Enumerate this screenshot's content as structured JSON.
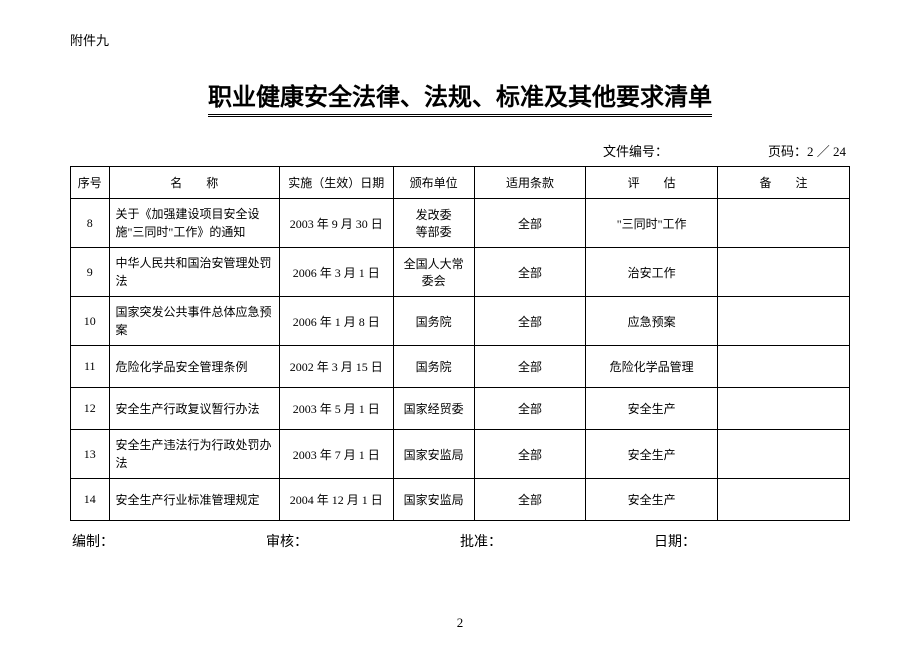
{
  "attachment_label": "附件九",
  "main_title": "职业健康安全法律、法规、标准及其他要求清单",
  "meta": {
    "doc_no_label": "文件编号：",
    "page_label": "页码：2 ／ 24"
  },
  "table": {
    "headers": {
      "seq": "序号",
      "name": "名　　称",
      "date": "实施（生效）日期",
      "unit": "颁布单位",
      "clause": "适用条款",
      "eval": "评　　估",
      "remark": "备　　注"
    },
    "rows": [
      {
        "seq": "8",
        "name": "关于《加强建设项目安全设施\"三同时\"工作》的通知",
        "date": "2003 年 9 月 30 日",
        "unit": "发改委\n等部委",
        "clause": "全部",
        "eval": "\"三同时\"工作",
        "remark": ""
      },
      {
        "seq": "9",
        "name": "中华人民共和国治安管理处罚法",
        "date": "2006 年 3 月 1 日",
        "unit": "全国人大常\n委会",
        "clause": "全部",
        "eval": "治安工作",
        "remark": ""
      },
      {
        "seq": "10",
        "name": "国家突发公共事件总体应急预案",
        "date": "2006 年 1 月 8 日",
        "unit": "国务院",
        "clause": "全部",
        "eval": "应急预案",
        "remark": ""
      },
      {
        "seq": "11",
        "name": "危险化学品安全管理条例",
        "date": "2002 年 3 月 15 日",
        "unit": "国务院",
        "clause": "全部",
        "eval": "危险化学品管理",
        "remark": ""
      },
      {
        "seq": "12",
        "name": "安全生产行政复议暂行办法",
        "date": "2003 年 5 月 1 日",
        "unit": "国家经贸委",
        "clause": "全部",
        "eval": "安全生产",
        "remark": ""
      },
      {
        "seq": "13",
        "name": "安全生产违法行为行政处罚办法",
        "date": "2003 年 7 月 1 日",
        "unit": "国家安监局",
        "clause": "全部",
        "eval": "安全生产",
        "remark": ""
      },
      {
        "seq": "14",
        "name": "安全生产行业标准管理规定",
        "date": "2004 年 12 月 1 日",
        "unit": "国家安监局",
        "clause": "全部",
        "eval": "安全生产",
        "remark": ""
      }
    ]
  },
  "footer": {
    "made_by": "编制：",
    "reviewed_by": "审核：",
    "approved_by": "批准：",
    "date": "日期："
  },
  "page_number": "2"
}
